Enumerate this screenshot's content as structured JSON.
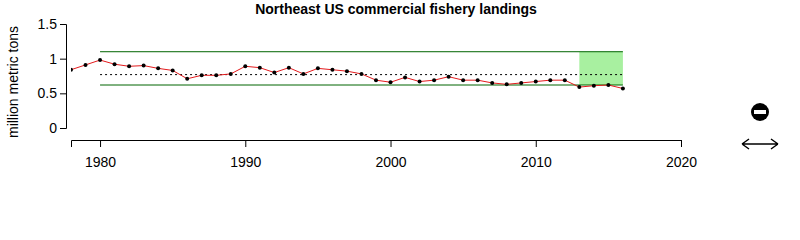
{
  "chart_data": {
    "type": "line",
    "title": "Northeast US commercial fishery landings",
    "y_label": "million metric tons",
    "x": [
      1978,
      1979,
      1980,
      1981,
      1982,
      1983,
      1984,
      1985,
      1986,
      1987,
      1988,
      1989,
      1990,
      1991,
      1992,
      1993,
      1994,
      1995,
      1996,
      1997,
      1998,
      1999,
      2000,
      2001,
      2002,
      2003,
      2004,
      2005,
      2006,
      2007,
      2008,
      2009,
      2010,
      2011,
      2012,
      2013,
      2014,
      2015,
      2016
    ],
    "series": [
      {
        "color": "#e41a1c",
        "marker": "circle",
        "values": [
          0.84,
          0.91,
          0.98,
          0.92,
          0.89,
          0.9,
          0.86,
          0.83,
          0.71,
          0.76,
          0.76,
          0.78,
          0.89,
          0.87,
          0.8,
          0.87,
          0.78,
          0.86,
          0.84,
          0.82,
          0.78,
          0.69,
          0.66,
          0.73,
          0.67,
          0.69,
          0.74,
          0.69,
          0.69,
          0.65,
          0.63,
          0.65,
          0.67,
          0.69,
          0.69,
          0.59,
          0.61,
          0.62,
          0.57
        ]
      }
    ],
    "mean": 0.77,
    "upper": 1.1,
    "lower": 0.62,
    "reference_x": [
      1980,
      2016
    ],
    "highlight_x": [
      2013,
      2016
    ],
    "highlight_y": [
      0.62,
      1.1
    ],
    "xlim": [
      1978,
      2020
    ],
    "xticks": [
      1980,
      1990,
      2000,
      2010,
      2020
    ],
    "ylim": [
      0,
      1.5
    ],
    "yticks": [
      0,
      0.5,
      1,
      1.5
    ],
    "grid": false
  }
}
